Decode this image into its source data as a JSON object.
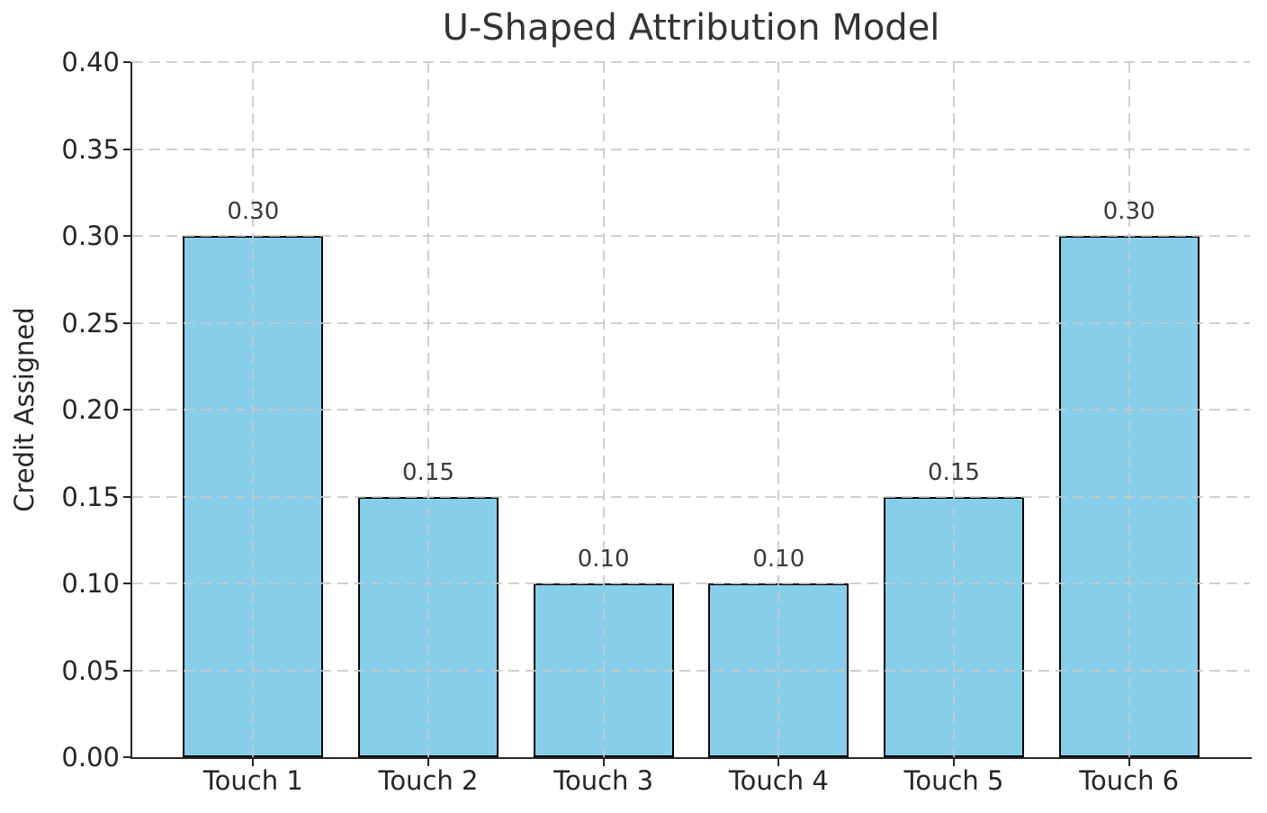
{
  "chart_data": {
    "type": "bar",
    "title": "U-Shaped Attribution Model",
    "xlabel": "",
    "ylabel": "Credit Assigned",
    "categories": [
      "Touch 1",
      "Touch 2",
      "Touch 3",
      "Touch 4",
      "Touch 5",
      "Touch 6"
    ],
    "values": [
      0.3,
      0.15,
      0.1,
      0.1,
      0.15,
      0.3
    ],
    "value_labels": [
      "0.30",
      "0.15",
      "0.10",
      "0.10",
      "0.15",
      "0.30"
    ],
    "ylim": [
      0.0,
      0.4
    ],
    "ytick_step": 0.05,
    "ytick_labels": [
      "0.00",
      "0.05",
      "0.10",
      "0.15",
      "0.20",
      "0.25",
      "0.30",
      "0.35",
      "0.40"
    ],
    "grid": "dashed-both-axes-drawn-over-bars",
    "legend": "none",
    "colors": {
      "bar_fill": "#87CEEB",
      "bar_edge": "#000000",
      "gridline": "#c8c8c8",
      "text": "#262626",
      "title_text": "#333333",
      "background": "#ffffff"
    }
  }
}
